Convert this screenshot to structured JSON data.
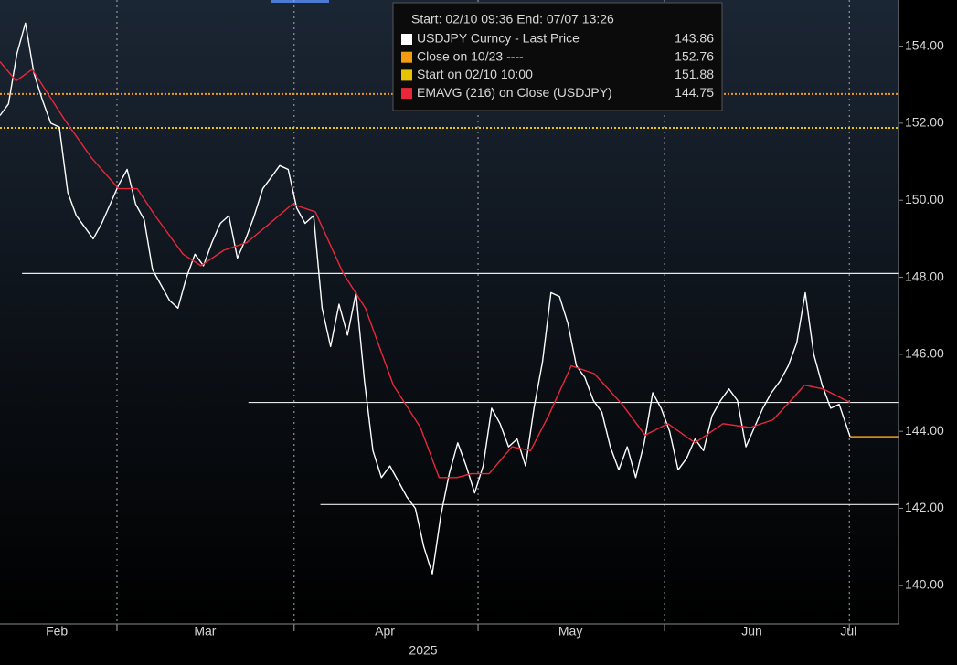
{
  "chart_data": {
    "type": "line",
    "xlim": [
      0,
      106
    ],
    "ylim": [
      139.0,
      155.2
    ],
    "yticks": [
      {
        "value": 140,
        "label": "140.00"
      },
      {
        "value": 142,
        "label": "142.00"
      },
      {
        "value": 144,
        "label": "144.00"
      },
      {
        "value": 146,
        "label": "146.00"
      },
      {
        "value": 148,
        "label": "148.00"
      },
      {
        "value": 150,
        "label": "150.00"
      },
      {
        "value": 152,
        "label": "152.00"
      },
      {
        "value": 154,
        "label": "154.00"
      }
    ],
    "xticks": [
      {
        "value": 6.7,
        "label": "Feb"
      },
      {
        "value": 24.2,
        "label": "Mar"
      },
      {
        "value": 45.4,
        "label": "Apr"
      },
      {
        "value": 67.3,
        "label": "May"
      },
      {
        "value": 88.7,
        "label": "Jun"
      },
      {
        "value": 100.1,
        "label": "Jul"
      }
    ],
    "xgrid": [
      13.8,
      34.7,
      56.4,
      78.4,
      100.2
    ],
    "xlabel": "2025",
    "legend_title": "Start: 02/10 09:36 End: 07/07 13:26",
    "legend": [
      {
        "name": "USDJPY Curncy - Last Price",
        "color": "#ffffff",
        "value": 143.86
      },
      {
        "name": "Close on 10/23 ----",
        "color": "#f39c12",
        "value": 152.76
      },
      {
        "name": "Start on 02/10 10:00",
        "color": "#e8c400",
        "value": 151.88
      },
      {
        "name": "EMAVG (216)  on Close (USDJPY)",
        "color": "#e8283a",
        "value": 144.75
      }
    ],
    "hlines": [
      {
        "value": 148.1,
        "x0": 2.6
      },
      {
        "value": 144.75,
        "x0": 29.3
      },
      {
        "value": 142.1,
        "x0": 37.8
      }
    ],
    "series": [
      {
        "color": "#ffffff",
        "x": [
          0,
          1,
          2,
          3,
          4,
          5,
          6,
          7,
          8,
          9,
          10,
          11,
          12,
          13,
          14,
          15,
          16,
          17,
          18,
          19,
          20,
          21,
          22,
          23,
          24,
          25,
          26,
          27,
          28,
          29,
          30,
          31,
          32,
          33,
          34,
          35,
          36,
          37,
          38,
          39,
          40,
          41,
          42,
          43,
          44,
          45,
          46,
          47,
          48,
          49,
          50,
          51,
          52,
          53,
          54,
          55,
          56,
          57,
          58,
          59,
          60,
          61,
          62,
          63,
          64,
          65,
          66,
          67,
          68,
          69,
          70,
          71,
          72,
          73,
          74,
          75,
          76,
          77,
          78,
          79,
          80,
          81,
          82,
          83,
          84,
          85,
          86,
          87,
          88,
          89,
          90,
          91,
          92,
          93,
          94,
          95,
          96,
          97,
          98,
          99,
          100.3
        ],
        "values": [
          152.2,
          152.5,
          153.8,
          154.6,
          153.3,
          152.6,
          152.0,
          151.9,
          150.2,
          149.6,
          149.3,
          149.0,
          149.4,
          149.9,
          150.4,
          150.8,
          149.9,
          149.5,
          148.2,
          147.8,
          147.4,
          147.2,
          148.0,
          148.6,
          148.3,
          148.9,
          149.4,
          149.6,
          148.5,
          149.0,
          149.6,
          150.3,
          150.6,
          150.9,
          150.8,
          149.8,
          149.4,
          149.6,
          147.2,
          146.2,
          147.3,
          146.5,
          147.6,
          145.3,
          143.5,
          142.8,
          143.1,
          142.7,
          142.3,
          142.0,
          141.0,
          140.3,
          141.8,
          142.9,
          143.7,
          143.1,
          142.4,
          143.1,
          144.6,
          144.2,
          143.6,
          143.8,
          143.1,
          144.6,
          145.8,
          147.6,
          147.5,
          146.8,
          145.7,
          145.4,
          144.8,
          144.5,
          143.6,
          143.0,
          143.6,
          142.8,
          143.7,
          145.0,
          144.6,
          144.0,
          143.0,
          143.3,
          143.8,
          143.5,
          144.4,
          144.8,
          145.1,
          144.8,
          143.6,
          144.1,
          144.6,
          145.0,
          145.3,
          145.7,
          146.3,
          147.6,
          146.0,
          145.2,
          144.6,
          144.7,
          143.86
        ]
      },
      {
        "color": "#e8283a",
        "x": [
          0,
          1.9,
          3.8,
          7.6,
          10.8,
          14,
          16.2,
          18.3,
          21.6,
          23.7,
          26.4,
          29.1,
          31.3,
          34.5,
          37.2,
          40.5,
          43.1,
          46.4,
          49.6,
          51.8,
          53.9,
          55.6,
          57.7,
          60.4,
          62.6,
          64.7,
          67.4,
          70.1,
          73.4,
          76.1,
          78.8,
          82,
          85.3,
          88.5,
          91.2,
          93.3,
          94.9,
          97.1,
          100.3
        ],
        "values": [
          153.6,
          153.1,
          153.4,
          152.1,
          151.1,
          150.3,
          150.3,
          149.6,
          148.6,
          148.3,
          148.7,
          148.9,
          149.3,
          149.9,
          149.7,
          148.1,
          147.2,
          145.2,
          144.1,
          142.8,
          142.8,
          142.9,
          142.9,
          143.6,
          143.5,
          144.4,
          145.7,
          145.5,
          144.7,
          143.9,
          144.2,
          143.7,
          144.2,
          144.1,
          144.3,
          144.8,
          145.2,
          145.1,
          144.75
        ]
      }
    ]
  }
}
